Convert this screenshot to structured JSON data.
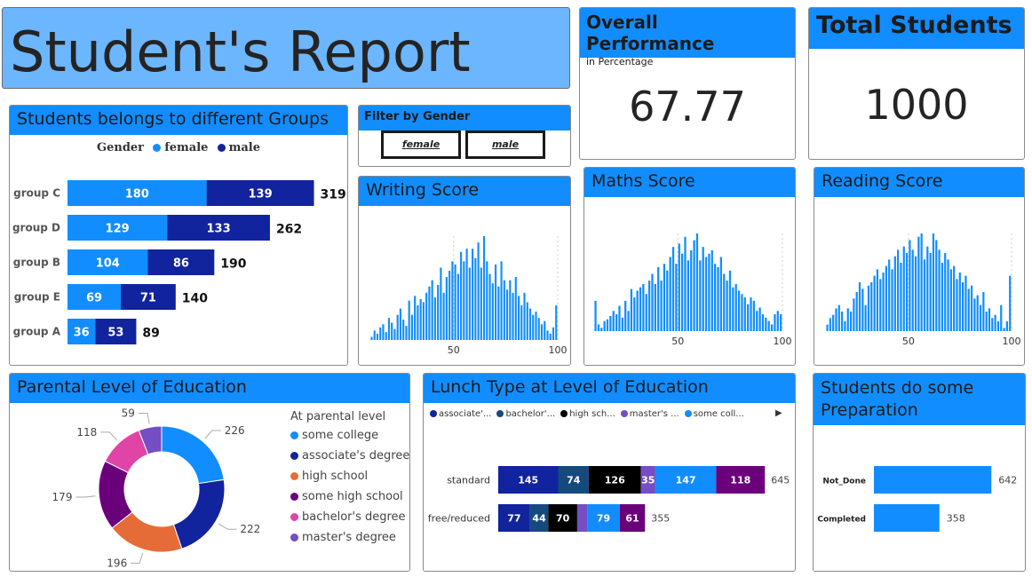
{
  "report_title": "Student's Report",
  "kpi": {
    "overall_title": "Overall Performance",
    "overall_subtitle": "in Percentage",
    "overall_value": "67.77",
    "total_title": "Total Students",
    "total_value": "1000"
  },
  "filter": {
    "title": "Filter by Gender",
    "options": [
      "female",
      "male"
    ]
  },
  "colors": {
    "accent": "#118dff",
    "navy": "#12239e",
    "dark_blue": "#154a7f",
    "black": "#000000",
    "purple": "#744ec2",
    "orange": "#e66c37",
    "dark_purple": "#6b007b",
    "pink": "#e044a7",
    "title_bg": "#6cb6ff"
  },
  "chart_data": [
    {
      "id": "groups",
      "type": "bar",
      "orientation": "horizontal",
      "stacked": true,
      "title": "Students belongs to different Groups",
      "legend_title": "Gender",
      "categories": [
        "group C",
        "group D",
        "group B",
        "group E",
        "group A"
      ],
      "series": [
        {
          "name": "female",
          "values": [
            180,
            129,
            104,
            69,
            36
          ]
        },
        {
          "name": "male",
          "values": [
            139,
            133,
            86,
            71,
            53
          ]
        }
      ],
      "totals": [
        319,
        262,
        190,
        140,
        89
      ]
    },
    {
      "id": "writing",
      "type": "bar",
      "title": "Writing Score",
      "x_range": [
        10,
        100
      ],
      "x_ticks": [
        50,
        100
      ],
      "counts": [
        2,
        6,
        4,
        8,
        10,
        5,
        14,
        11,
        7,
        16,
        20,
        13,
        9,
        25,
        16,
        28,
        22,
        26,
        24,
        30,
        34,
        38,
        27,
        35,
        46,
        30,
        40,
        44,
        50,
        48,
        42,
        56,
        50,
        58,
        46,
        58,
        52,
        62,
        46,
        66,
        50,
        42,
        36,
        48,
        34,
        50,
        38,
        32,
        38,
        30,
        40,
        28,
        22,
        30,
        24,
        20,
        16,
        18,
        14,
        10,
        12,
        6,
        4,
        8,
        22
      ]
    },
    {
      "id": "maths",
      "type": "bar",
      "title": "Maths Score",
      "x_range": [
        10,
        100
      ],
      "x_ticks": [
        50,
        100
      ],
      "counts": [
        18,
        4,
        2,
        6,
        7,
        9,
        12,
        10,
        15,
        8,
        18,
        12,
        25,
        20,
        24,
        26,
        28,
        22,
        30,
        34,
        28,
        38,
        30,
        40,
        36,
        44,
        50,
        40,
        52,
        46,
        56,
        42,
        48,
        54,
        58,
        42,
        50,
        44,
        46,
        48,
        40,
        38,
        44,
        34,
        30,
        36,
        26,
        28,
        24,
        22,
        20,
        16,
        20,
        18,
        12,
        14,
        10,
        8,
        6,
        4,
        10,
        12,
        10
      ]
    },
    {
      "id": "reading",
      "type": "bar",
      "title": "Reading Score",
      "x_range": [
        10,
        100
      ],
      "x_ticks": [
        50,
        100
      ],
      "counts": [
        4,
        8,
        10,
        14,
        16,
        12,
        6,
        14,
        12,
        20,
        24,
        30,
        26,
        16,
        28,
        30,
        34,
        38,
        32,
        36,
        40,
        44,
        38,
        46,
        50,
        42,
        52,
        48,
        56,
        50,
        46,
        58,
        60,
        44,
        52,
        48,
        60,
        56,
        50,
        42,
        48,
        44,
        38,
        40,
        32,
        36,
        30,
        34,
        26,
        28,
        20,
        22,
        16,
        24,
        12,
        14,
        8,
        10,
        6,
        16,
        2,
        6,
        34
      ]
    },
    {
      "id": "parental",
      "type": "pie",
      "donut": true,
      "title": "Parental Level of Education",
      "legend_title": "At parental level",
      "labels": [
        "some college",
        "associate's degree",
        "high school",
        "some high school",
        "bachelor's degree",
        "master's degree"
      ],
      "values": [
        226,
        222,
        196,
        179,
        118,
        59
      ]
    },
    {
      "id": "lunch",
      "type": "bar",
      "orientation": "horizontal",
      "stacked": true,
      "title": "Lunch Type at Level of Education",
      "legend_labels": [
        "associate'...",
        "bachelor'...",
        "high sch...",
        "master's ...",
        "some coll..."
      ],
      "categories": [
        "standard",
        "free/reduced"
      ],
      "series": [
        {
          "name": "associate's degree",
          "values": [
            145,
            77
          ]
        },
        {
          "name": "bachelor's degree",
          "values": [
            74,
            44
          ]
        },
        {
          "name": "high school",
          "values": [
            126,
            70
          ]
        },
        {
          "name": "master's degree",
          "values": [
            35,
            24
          ]
        },
        {
          "name": "some college",
          "values": [
            147,
            79
          ]
        },
        {
          "name": "some high school",
          "values": [
            118,
            61
          ]
        }
      ],
      "totals": [
        645,
        355
      ]
    },
    {
      "id": "preparation",
      "type": "bar",
      "orientation": "horizontal",
      "title": "Students do some Preparation",
      "categories": [
        "Not_Done",
        "Completed"
      ],
      "values": [
        642,
        358
      ]
    }
  ]
}
